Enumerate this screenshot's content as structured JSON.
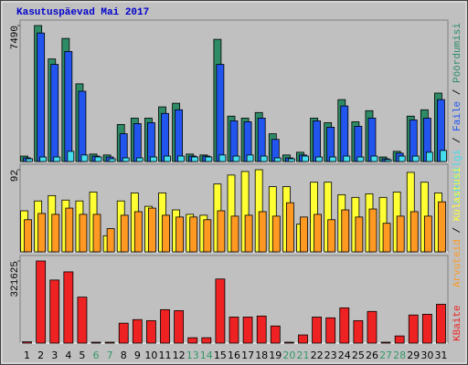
{
  "chart_data": [
    {
      "type": "bar",
      "title": "Kasutuspäevad Mai 2017",
      "title_color": "#0000cc",
      "ylim": [
        0,
        7490
      ],
      "yticks": [
        7490
      ],
      "legend_separator": " / ",
      "series": [
        {
          "name": "Pöördumisi",
          "color": "#2e8b66",
          "values": [
            300,
            7490,
            5650,
            6780,
            4280,
            410,
            360,
            2040,
            2390,
            2390,
            3010,
            3210,
            410,
            360,
            6730,
            2500,
            2390,
            2700,
            1530,
            360,
            510,
            2390,
            2140,
            3410,
            2190,
            2800,
            250,
            560,
            2500,
            2850,
            3770
          ]
        },
        {
          "name": "Faile",
          "color": "#2255ee",
          "values": [
            200,
            7080,
            5350,
            6060,
            3870,
            300,
            250,
            1530,
            2090,
            2140,
            2650,
            2850,
            300,
            300,
            5350,
            2240,
            2190,
            2390,
            1220,
            200,
            360,
            2240,
            1890,
            3060,
            1940,
            2390,
            150,
            460,
            2290,
            2390,
            3410
          ]
        },
        {
          "name": "Lehekülgi",
          "color": "#44ddee",
          "values": [
            150,
            250,
            250,
            560,
            360,
            250,
            150,
            200,
            200,
            250,
            300,
            300,
            250,
            250,
            360,
            300,
            360,
            300,
            200,
            150,
            300,
            250,
            250,
            300,
            250,
            300,
            100,
            300,
            300,
            510,
            610
          ]
        }
      ]
    },
    {
      "type": "bar",
      "ylim": [
        0,
        92
      ],
      "yticks": [
        92
      ],
      "legend_separator": " / ",
      "series": [
        {
          "name": "Külastusi",
          "color": "#ffff33",
          "values": [
            46,
            57,
            63,
            58,
            57,
            67,
            18,
            57,
            66,
            51,
            66,
            47,
            42,
            41,
            76,
            86,
            90,
            92,
            73,
            73,
            31,
            78,
            78,
            64,
            61,
            65,
            61,
            67,
            89,
            78,
            66
          ]
        },
        {
          "name": "Arvuteid",
          "color": "#ff9922",
          "values": [
            36,
            43,
            42,
            49,
            42,
            42,
            26,
            41,
            45,
            49,
            41,
            39,
            39,
            36,
            46,
            40,
            41,
            45,
            40,
            55,
            39,
            42,
            36,
            47,
            39,
            48,
            32,
            40,
            45,
            40,
            56
          ]
        }
      ]
    },
    {
      "type": "bar",
      "ylim": [
        0,
        321625
      ],
      "yticks": [
        321625
      ],
      "categories": [
        "1",
        "2",
        "3",
        "4",
        "5",
        "6",
        "7",
        "8",
        "9",
        "10",
        "11",
        "12",
        "13",
        "14",
        "15",
        "16",
        "17",
        "18",
        "19",
        "20",
        "21",
        "22",
        "23",
        "24",
        "25",
        "26",
        "27",
        "28",
        "29",
        "30",
        "31"
      ],
      "highlight_categories": [
        "6",
        "7",
        "13",
        "14",
        "20",
        "21",
        "27",
        "28"
      ],
      "highlight_color": "#339966",
      "series": [
        {
          "name": "KBaite",
          "color": "#ee2222",
          "values": [
            5000,
            321625,
            247000,
            279000,
            180000,
            3500,
            3500,
            78000,
            92000,
            88000,
            131000,
            127000,
            21000,
            21000,
            251000,
            102000,
            102000,
            106000,
            67000,
            3500,
            32000,
            102000,
            99000,
            138000,
            88000,
            124000,
            3500,
            28000,
            110000,
            113000,
            152000
          ]
        }
      ]
    }
  ]
}
